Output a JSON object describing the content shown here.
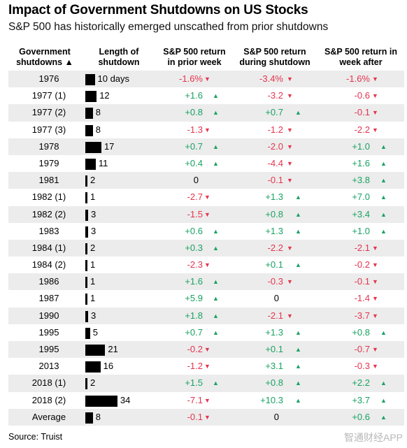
{
  "title": "Impact of Government Shutdowns on US Stocks",
  "subtitle": "S&P 500 has historically emerged unscathed from prior shutdowns",
  "source": "Source: Truist",
  "watermark": "智通财经APP",
  "colors": {
    "positive": "#19a262",
    "negative": "#e5344e",
    "shade": "#ececec"
  },
  "chart_data": {
    "type": "table",
    "columns": [
      {
        "line1": "Government",
        "line2": "shutdowns ▲"
      },
      {
        "line1": "Length of",
        "line2": "shutdown"
      },
      {
        "line1": "S&P 500 return",
        "line2": "in prior week"
      },
      {
        "line1": "S&P 500 return",
        "line2": "during shutdown"
      },
      {
        "line1": "S&P 500 return in",
        "line2": "week after"
      }
    ],
    "rows": [
      {
        "label": "1976",
        "days": 10,
        "days_label": "10 days",
        "prior": "-1.6%",
        "during": "-3.4%",
        "after": "-1.6%"
      },
      {
        "label": "1977 (1)",
        "days": 12,
        "days_label": "12",
        "prior": "+1.6",
        "during": "-3.2",
        "after": "-0.6"
      },
      {
        "label": "1977 (2)",
        "days": 8,
        "days_label": "8",
        "prior": "+0.8",
        "during": "+0.7",
        "after": "-0.1"
      },
      {
        "label": "1977 (3)",
        "days": 8,
        "days_label": "8",
        "prior": "-1.3",
        "during": "-1.2",
        "after": "-2.2"
      },
      {
        "label": "1978",
        "days": 17,
        "days_label": "17",
        "prior": "+0.7",
        "during": "-2.0",
        "after": "+1.0"
      },
      {
        "label": "1979",
        "days": 11,
        "days_label": "11",
        "prior": "+0.4",
        "during": "-4.4",
        "after": "+1.6"
      },
      {
        "label": "1981",
        "days": 2,
        "days_label": "2",
        "prior": "0",
        "during": "-0.1",
        "after": "+3.8"
      },
      {
        "label": "1982 (1)",
        "days": 1,
        "days_label": "1",
        "prior": "-2.7",
        "during": "+1.3",
        "after": "+7.0"
      },
      {
        "label": "1982 (2)",
        "days": 3,
        "days_label": "3",
        "prior": "-1.5",
        "during": "+0.8",
        "after": "+3.4"
      },
      {
        "label": "1983",
        "days": 3,
        "days_label": "3",
        "prior": "+0.6",
        "during": "+1.3",
        "after": "+1.0"
      },
      {
        "label": "1984 (1)",
        "days": 2,
        "days_label": "2",
        "prior": "+0.3",
        "during": "-2.2",
        "after": "-2.1"
      },
      {
        "label": "1984 (2)",
        "days": 1,
        "days_label": "1",
        "prior": "-2.3",
        "during": "+0.1",
        "after": "-0.2"
      },
      {
        "label": "1986",
        "days": 1,
        "days_label": "1",
        "prior": "+1.6",
        "during": "-0.3",
        "after": "-0.1"
      },
      {
        "label": "1987",
        "days": 1,
        "days_label": "1",
        "prior": "+5.9",
        "during": "0",
        "after": "-1.4"
      },
      {
        "label": "1990",
        "days": 3,
        "days_label": "3",
        "prior": "+1.8",
        "during": "-2.1",
        "after": "-3.7"
      },
      {
        "label": "1995",
        "days": 5,
        "days_label": "5",
        "prior": "+0.7",
        "during": "+1.3",
        "after": "+0.8"
      },
      {
        "label": "1995",
        "days": 21,
        "days_label": "21",
        "prior": "-0.2",
        "during": "+0.1",
        "after": "-0.7"
      },
      {
        "label": "2013",
        "days": 16,
        "days_label": "16",
        "prior": "-1.2",
        "during": "+3.1",
        "after": "-0.3"
      },
      {
        "label": "2018 (1)",
        "days": 2,
        "days_label": "2",
        "prior": "+1.5",
        "during": "+0.8",
        "after": "+2.2"
      },
      {
        "label": "2018 (2)",
        "days": 34,
        "days_label": "34",
        "prior": "-7.1",
        "during": "+10.3",
        "after": "+3.7"
      },
      {
        "label": "Average",
        "days": 8,
        "days_label": "8",
        "prior": "-0.1",
        "during": "0",
        "after": "+0.6"
      }
    ]
  }
}
